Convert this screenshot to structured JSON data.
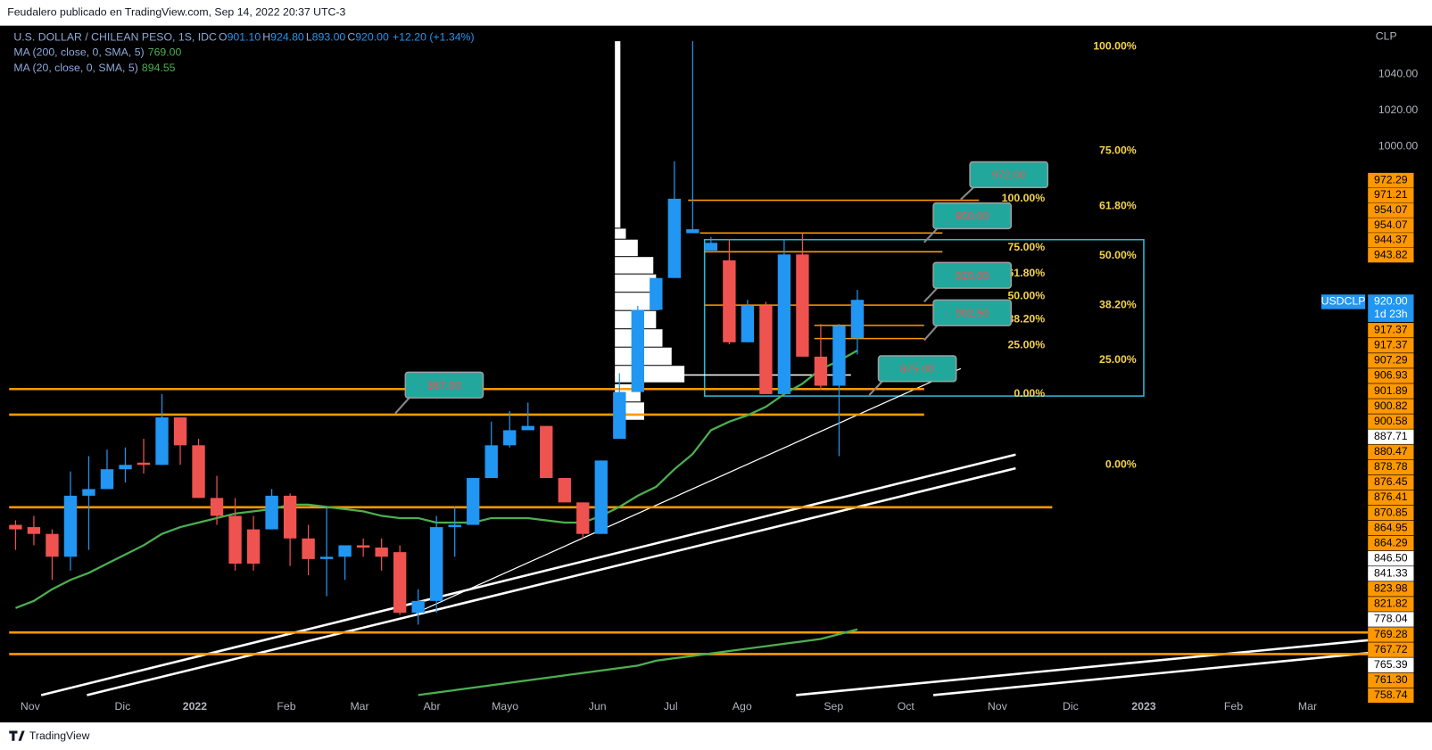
{
  "header": {
    "text": "Feudalero publicado en TradingView.com, Sep 14, 2022 20:37 UTC-3"
  },
  "footer": {
    "brand": "TradingView"
  },
  "chart_data": {
    "type": "candlestick",
    "title": "U.S. DOLLAR / CHILEAN PESO, 1S, IDC",
    "ohlc_legend": [
      {
        "label": "O",
        "value": "901.10"
      },
      {
        "label": "H",
        "value": "924.80"
      },
      {
        "label": "L",
        "value": "893.00"
      },
      {
        "label": "C",
        "value": "920.00"
      }
    ],
    "change": "+12.20 (+1.34%)",
    "currency": "CLP",
    "up_color": "#2196f3",
    "down_color": "#ef5350",
    "log_scale": true,
    "ylim": [
      731,
      1068
    ],
    "yticks": [
      {
        "value": 1040,
        "label": "1040.00"
      },
      {
        "value": 1020,
        "label": "1020.00"
      },
      {
        "value": 1000,
        "label": "1000.00"
      }
    ],
    "xtick_labels": [
      "Nov",
      "Dic",
      "2022",
      "Feb",
      "Mar",
      "Abr",
      "Mayo",
      "Jun",
      "Jul",
      "Ago",
      "Sep",
      "Oct",
      "Nov",
      "Dic",
      "2023",
      "Feb",
      "Mar"
    ],
    "open": [
      814,
      813,
      810,
      800,
      827,
      830,
      839,
      842,
      841,
      863,
      850,
      826,
      818,
      812,
      812,
      827,
      808,
      799,
      800,
      805,
      804,
      802,
      776,
      781,
      813,
      814,
      835,
      850,
      857,
      859,
      835,
      824,
      810,
      853,
      875,
      915,
      931,
      954,
      945,
      940,
      899,
      917,
      874,
      943,
      892,
      878,
      901
    ],
    "high": [
      816,
      818,
      812,
      838,
      845,
      848,
      849,
      853,
      874,
      863,
      853,
      836,
      826,
      818,
      830,
      828,
      814,
      822,
      805,
      808,
      808,
      805,
      786,
      818,
      822,
      835,
      861,
      866,
      870,
      859,
      835,
      824,
      843,
      884,
      917,
      931,
      992,
      1059,
      952,
      951,
      920,
      919,
      951,
      954,
      908,
      908,
      925
    ],
    "low": [
      803,
      805,
      790,
      794,
      803,
      830,
      833,
      837,
      841,
      841,
      826,
      814,
      794,
      794,
      812,
      796,
      792,
      783,
      790,
      800,
      794,
      775,
      771,
      776,
      800,
      814,
      835,
      849,
      857,
      835,
      824,
      808,
      810,
      853,
      875,
      915,
      931,
      954,
      945,
      898,
      899,
      874,
      874,
      892,
      876,
      845,
      893
    ],
    "close": [
      812,
      810,
      800,
      827,
      830,
      839,
      841,
      841,
      863,
      850,
      826,
      818,
      797,
      797,
      827,
      808,
      799,
      800,
      805,
      804,
      800,
      776,
      781,
      813,
      814,
      835,
      850,
      857,
      859,
      835,
      824,
      810,
      843,
      875,
      915,
      931,
      972,
      956,
      949,
      899,
      917,
      874,
      943,
      892,
      878,
      907,
      920
    ],
    "indicators": [
      {
        "name": "MA (200, close, 0, SMA, 5)",
        "value_label": "769.00",
        "color": "#4caf50",
        "values": [
          null,
          null,
          null,
          null,
          null,
          null,
          null,
          null,
          null,
          null,
          null,
          null,
          null,
          null,
          null,
          null,
          null,
          null,
          null,
          null,
          null,
          null,
          742,
          743,
          744,
          745,
          746,
          747,
          748,
          749,
          750,
          751,
          752,
          753,
          754,
          756,
          757,
          758,
          759,
          760,
          761,
          762,
          763,
          764,
          765,
          767,
          769
        ]
      },
      {
        "name": "MA (20, close, 0, SMA, 5)",
        "value_label": "894.55",
        "color": "#4caf50",
        "values": [
          778,
          781,
          786,
          790,
          793,
          797,
          801,
          805,
          810,
          813,
          815,
          817,
          819,
          820,
          821,
          823,
          823,
          822,
          821,
          820,
          818,
          817,
          817,
          815,
          815,
          815,
          817,
          817,
          817,
          816,
          815,
          815,
          818,
          822,
          827,
          831,
          839,
          846,
          857,
          861,
          864,
          868,
          874,
          879,
          886,
          890,
          895
        ]
      }
    ],
    "levels": [
      971.21,
      954.07,
      944.37,
      917.37,
      907.29,
      900.82,
      876.41,
      864.29,
      821.82,
      767.72,
      758.74
    ],
    "level_color": "#ff9800",
    "fibs": [
      {
        "high": 972,
        "low": 874,
        "color": "#f5d34a",
        "levels": [
          {
            "value": 100,
            "label": "100.00%"
          },
          {
            "value": 75,
            "label": "75.00%"
          },
          {
            "value": 61.8,
            "label": "61.80%"
          },
          {
            "value": 50,
            "label": "50.00%"
          },
          {
            "value": 38.2,
            "label": "38.20%"
          },
          {
            "value": 25,
            "label": "25.00%"
          },
          {
            "value": 0,
            "label": "0.00%"
          }
        ]
      },
      {
        "high": 1056,
        "low": 841,
        "color": "#f5d34a",
        "levels": [
          {
            "value": 100,
            "label": "100.00%"
          },
          {
            "value": 75,
            "label": "75.00%"
          },
          {
            "value": 61.8,
            "label": "61.80%"
          },
          {
            "value": 50,
            "label": "50.00%"
          },
          {
            "value": 38.2,
            "label": "38.20%"
          },
          {
            "value": 25,
            "label": "25.00%"
          },
          {
            "value": 0,
            "label": "0.00%"
          }
        ]
      }
    ],
    "callouts": [
      "972.00",
      "950.00",
      "920.00",
      "902.50",
      "875.00",
      "867.00"
    ],
    "last_price": {
      "symbol": "USDCLP",
      "price": "920.00",
      "countdown": "1d 23h",
      "color": "#2196f3"
    },
    "price_tags": [
      {
        "label": "972.29",
        "color": "#ff9800"
      },
      {
        "label": "971.21",
        "color": "#ff9800"
      },
      {
        "label": "954.07",
        "color": "#ff9800"
      },
      {
        "label": "954.07",
        "color": "#ff9800"
      },
      {
        "label": "944.37",
        "color": "#ff9800"
      },
      {
        "label": "943.82",
        "color": "#ff9800"
      },
      {
        "label": "917.37",
        "color": "#ff9800"
      },
      {
        "label": "917.37",
        "color": "#ff9800"
      },
      {
        "label": "907.29",
        "color": "#ff9800"
      },
      {
        "label": "906.93",
        "color": "#ff9800"
      },
      {
        "label": "901.89",
        "color": "#ff9800"
      },
      {
        "label": "900.82",
        "color": "#ff9800"
      },
      {
        "label": "900.58",
        "color": "#ff9800"
      },
      {
        "label": "887.71",
        "color": "#ffffff"
      },
      {
        "label": "880.47",
        "color": "#ff9800"
      },
      {
        "label": "878.78",
        "color": "#ff9800"
      },
      {
        "label": "876.45",
        "color": "#ff9800"
      },
      {
        "label": "876.41",
        "color": "#ff9800"
      },
      {
        "label": "870.85",
        "color": "#ff9800"
      },
      {
        "label": "864.95",
        "color": "#ff9800"
      },
      {
        "label": "864.29",
        "color": "#ff9800"
      },
      {
        "label": "846.50",
        "color": "#ffffff"
      },
      {
        "label": "841.33",
        "color": "#ffffff"
      },
      {
        "label": "823.98",
        "color": "#ff9800"
      },
      {
        "label": "821.82",
        "color": "#ff9800"
      },
      {
        "label": "778.04",
        "color": "#ffffff"
      },
      {
        "label": "769.28",
        "color": "#ff9800"
      },
      {
        "label": "767.72",
        "color": "#ff9800"
      },
      {
        "label": "765.39",
        "color": "#ffffff"
      },
      {
        "label": "761.30",
        "color": "#ff9800"
      },
      {
        "label": "758.74",
        "color": "#ff9800"
      }
    ]
  }
}
